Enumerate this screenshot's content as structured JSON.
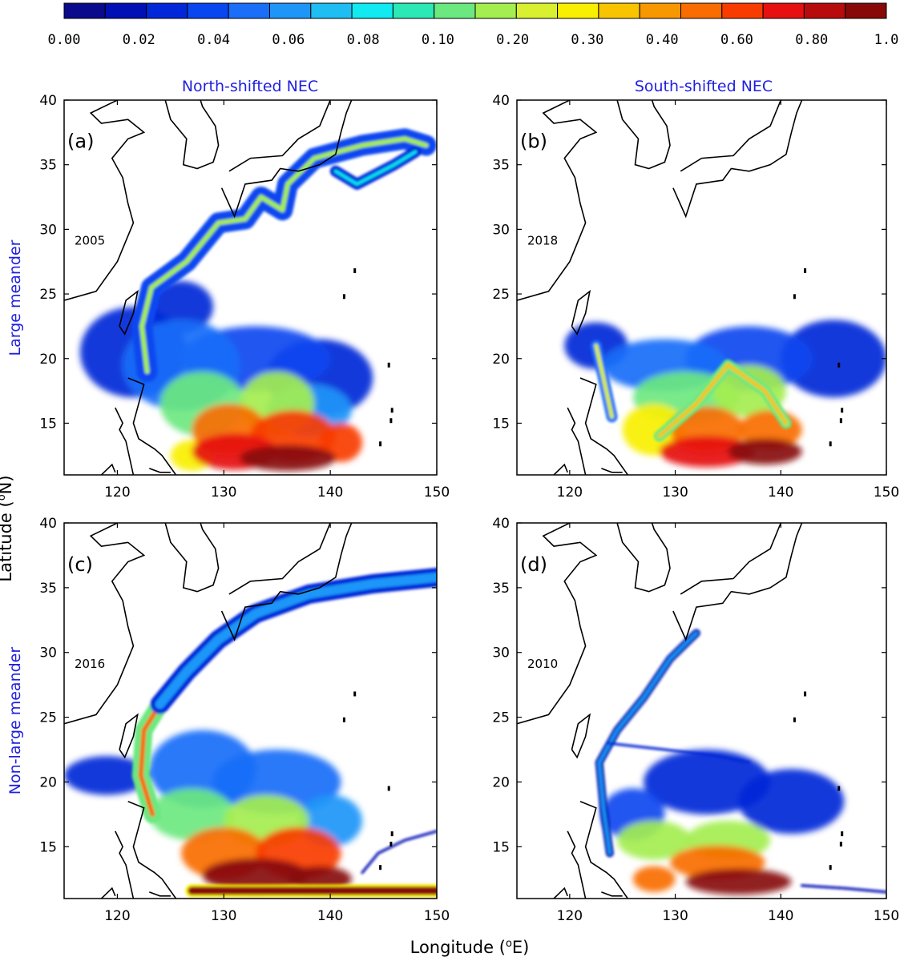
{
  "colorbar": {
    "ticks": [
      "0.00",
      "0.02",
      "0.04",
      "0.06",
      "0.08",
      "0.10",
      "0.20",
      "0.30",
      "0.40",
      "0.60",
      "0.80",
      "1.0"
    ],
    "colors": [
      "#0a0a8c",
      "#0010b4",
      "#0028d8",
      "#0846f0",
      "#1a6ef8",
      "#1e96f8",
      "#1ebef2",
      "#10eaf0",
      "#2ce8b4",
      "#6ce880",
      "#a4ee50",
      "#d8f030",
      "#f8f000",
      "#f8c400",
      "#f89800",
      "#f86c00",
      "#f83c00",
      "#e61010",
      "#b80c0c",
      "#880808"
    ]
  },
  "xlabel": "Longitude (",
  "xlabel_sup": "o",
  "xlabel_unit": "E)",
  "ylabel": "Latitude (",
  "ylabel_sup": "o",
  "ylabel_unit": "N)",
  "column_titles": [
    "North-shifted NEC",
    "South-shifted NEC"
  ],
  "row_titles": [
    "Large meander",
    "Non-large meander"
  ],
  "label_color": "#1f1fe0",
  "chart_data": [
    {
      "type": "heatmap",
      "panel": "(a)",
      "year": "2005",
      "xlim": [
        115,
        150
      ],
      "ylim": [
        11,
        40
      ],
      "xticks": [
        120,
        130,
        140,
        150
      ],
      "yticks": [
        15,
        20,
        25,
        30,
        35,
        40
      ],
      "field": [
        {
          "lon": 121.5,
          "lat": 20.5,
          "level": 0.03,
          "spread": [
            5,
            3.5
          ]
        },
        {
          "lon": 126,
          "lat": 19.5,
          "level": 0.05,
          "spread": [
            5.5,
            3.5
          ]
        },
        {
          "lon": 133,
          "lat": 20,
          "level": 0.04,
          "spread": [
            7,
            2.5
          ]
        },
        {
          "lon": 139,
          "lat": 18.5,
          "level": 0.03,
          "spread": [
            5,
            3
          ]
        },
        {
          "lon": 126,
          "lat": 24,
          "level": 0.03,
          "spread": [
            3,
            2
          ]
        },
        {
          "lon": 138,
          "lat": 16,
          "level": 0.06,
          "spread": [
            4,
            2
          ]
        },
        {
          "lon": 128,
          "lat": 16.5,
          "level": 0.12,
          "spread": [
            4,
            2.5
          ]
        },
        {
          "lon": 135,
          "lat": 16.5,
          "level": 0.18,
          "spread": [
            3.5,
            2.5
          ]
        },
        {
          "lon": 130.5,
          "lat": 14.5,
          "level": 0.45,
          "spread": [
            3.5,
            2
          ]
        },
        {
          "lon": 136.5,
          "lat": 14,
          "level": 0.6,
          "spread": [
            4,
            2
          ]
        },
        {
          "lon": 131,
          "lat": 12.8,
          "level": 0.7,
          "spread": [
            4,
            1.4
          ]
        },
        {
          "lon": 136,
          "lat": 12.3,
          "level": 0.95,
          "spread": [
            4.5,
            1
          ]
        },
        {
          "lon": 141,
          "lat": 13.5,
          "level": 0.6,
          "spread": [
            2,
            1.5
          ]
        },
        {
          "lon": 127,
          "lat": 12.5,
          "level": 0.3,
          "spread": [
            2,
            1.2
          ]
        }
      ],
      "paths": [
        {
          "name": "Kuroshio",
          "level": 0.18,
          "width": 6,
          "halo_level": 0.04,
          "halo_width": 26,
          "points": [
            [
              122.8,
              19
            ],
            [
              122.3,
              22.5
            ],
            [
              123.2,
              25.5
            ],
            [
              126.5,
              27.5
            ],
            [
              129.5,
              30.5
            ],
            [
              132,
              30.8
            ],
            [
              133.5,
              32.5
            ],
            [
              135.5,
              31.5
            ],
            [
              136,
              33.5
            ],
            [
              138.5,
              35.5
            ],
            [
              143,
              36.5
            ],
            [
              147,
              37
            ],
            [
              149,
              36.5
            ]
          ]
        },
        {
          "name": "eddy",
          "level": 0.08,
          "width": 4,
          "halo_level": 0.03,
          "halo_width": 14,
          "points": [
            [
              140.5,
              34.5
            ],
            [
              142.5,
              33.5
            ],
            [
              146,
              35
            ],
            [
              148,
              36
            ]
          ]
        }
      ]
    },
    {
      "type": "heatmap",
      "panel": "(b)",
      "year": "2018",
      "xlim": [
        115,
        150
      ],
      "ylim": [
        11,
        40
      ],
      "xticks": [
        120,
        130,
        140,
        150
      ],
      "yticks": [
        15,
        20,
        25,
        30,
        35,
        40
      ],
      "field": [
        {
          "lon": 122.5,
          "lat": 21,
          "level": 0.03,
          "spread": [
            3,
            1.8
          ]
        },
        {
          "lon": 129,
          "lat": 19.5,
          "level": 0.05,
          "spread": [
            6,
            2
          ]
        },
        {
          "lon": 137,
          "lat": 20,
          "level": 0.04,
          "spread": [
            6,
            2.5
          ]
        },
        {
          "lon": 145,
          "lat": 20,
          "level": 0.03,
          "spread": [
            5,
            3
          ]
        },
        {
          "lon": 131,
          "lat": 17,
          "level": 0.1,
          "spread": [
            5,
            2
          ]
        },
        {
          "lon": 137,
          "lat": 17.5,
          "level": 0.2,
          "spread": [
            3.5,
            2
          ]
        },
        {
          "lon": 128,
          "lat": 14.5,
          "level": 0.3,
          "spread": [
            3,
            2
          ]
        },
        {
          "lon": 133,
          "lat": 14.5,
          "level": 0.45,
          "spread": [
            3.5,
            1.8
          ]
        },
        {
          "lon": 139,
          "lat": 14.5,
          "level": 0.5,
          "spread": [
            3,
            1.5
          ]
        },
        {
          "lon": 133,
          "lat": 12.8,
          "level": 0.75,
          "spread": [
            4.5,
            1.2
          ]
        },
        {
          "lon": 138.5,
          "lat": 12.8,
          "level": 0.9,
          "spread": [
            3.5,
            1
          ]
        }
      ],
      "paths": [
        {
          "name": "Kuroshio",
          "level": 0.22,
          "width": 5,
          "halo_level": 0.05,
          "halo_width": 14,
          "points": [
            [
              124,
              15.5
            ],
            [
              123.2,
              18.5
            ],
            [
              122.5,
              21
            ]
          ]
        },
        {
          "name": "front",
          "level": 0.35,
          "width": 5,
          "halo_level": 0.1,
          "halo_width": 14,
          "points": [
            [
              128.5,
              14
            ],
            [
              132,
              16.5
            ],
            [
              135,
              19.5
            ],
            [
              138.5,
              17.5
            ],
            [
              140.5,
              15
            ]
          ]
        }
      ]
    },
    {
      "type": "heatmap",
      "panel": "(c)",
      "year": "2016",
      "xlim": [
        115,
        150
      ],
      "ylim": [
        11,
        40
      ],
      "xticks": [
        120,
        130,
        140,
        150
      ],
      "yticks": [
        15,
        20,
        25,
        30,
        35,
        40
      ],
      "field": [
        {
          "lon": 119,
          "lat": 20.5,
          "level": 0.03,
          "spread": [
            4,
            1.5
          ]
        },
        {
          "lon": 128,
          "lat": 21,
          "level": 0.05,
          "spread": [
            5,
            3
          ]
        },
        {
          "lon": 135,
          "lat": 20,
          "level": 0.05,
          "spread": [
            6,
            2.5
          ]
        },
        {
          "lon": 127,
          "lat": 17.5,
          "level": 0.12,
          "spread": [
            4,
            2
          ]
        },
        {
          "lon": 134,
          "lat": 17,
          "level": 0.15,
          "spread": [
            4,
            2
          ]
        },
        {
          "lon": 140,
          "lat": 17,
          "level": 0.06,
          "spread": [
            3,
            2
          ]
        },
        {
          "lon": 130,
          "lat": 14.5,
          "level": 0.55,
          "spread": [
            4,
            2
          ]
        },
        {
          "lon": 137,
          "lat": 14.5,
          "level": 0.6,
          "spread": [
            4,
            2
          ]
        },
        {
          "lon": 133,
          "lat": 12.8,
          "level": 0.9,
          "spread": [
            5,
            1.3
          ]
        },
        {
          "lon": 139,
          "lat": 12.5,
          "level": 0.95,
          "spread": [
            3,
            1
          ]
        }
      ],
      "paths": [
        {
          "name": "Kuroshio",
          "level": 0.55,
          "width": 6,
          "halo_level": 0.12,
          "halo_width": 22,
          "points": [
            [
              123.3,
              17.5
            ],
            [
              122.2,
              20.5
            ],
            [
              122.5,
              24
            ],
            [
              124,
              26
            ]
          ]
        },
        {
          "name": "northward",
          "level": 0.06,
          "width": 12,
          "halo_level": 0.03,
          "halo_width": 24,
          "points": [
            [
              124,
              26
            ],
            [
              126.5,
              28.5
            ],
            [
              129.5,
              31
            ],
            [
              133,
              33
            ],
            [
              138,
              34.5
            ],
            [
              144,
              35.3
            ],
            [
              150,
              35.8
            ]
          ]
        },
        {
          "name": "southern band",
          "level": 0.9,
          "width": 10,
          "halo_level": 0.3,
          "halo_width": 16,
          "points": [
            [
              127,
              11.6
            ],
            [
              138,
              11.6
            ],
            [
              150,
              11.6
            ]
          ]
        },
        {
          "name": "eastern filament",
          "level": 0.02,
          "width": 3,
          "halo_level": 0.02,
          "halo_width": 3,
          "points": [
            [
              143,
              13
            ],
            [
              144.5,
              14.5
            ],
            [
              147,
              15.5
            ],
            [
              150,
              16.2
            ]
          ]
        }
      ]
    },
    {
      "type": "heatmap",
      "panel": "(d)",
      "year": "2010",
      "xlim": [
        115,
        150
      ],
      "ylim": [
        11,
        40
      ],
      "xticks": [
        120,
        130,
        140,
        150
      ],
      "yticks": [
        15,
        20,
        25,
        30,
        35,
        40
      ],
      "field": [
        {
          "lon": 126,
          "lat": 17.5,
          "level": 0.04,
          "spread": [
            3,
            2
          ]
        },
        {
          "lon": 133,
          "lat": 20,
          "level": 0.03,
          "spread": [
            6,
            2.5
          ]
        },
        {
          "lon": 141,
          "lat": 18.5,
          "level": 0.03,
          "spread": [
            5,
            2.5
          ]
        },
        {
          "lon": 128,
          "lat": 15.5,
          "level": 0.15,
          "spread": [
            3.5,
            1.5
          ]
        },
        {
          "lon": 135,
          "lat": 15.5,
          "level": 0.2,
          "spread": [
            4,
            1.5
          ]
        },
        {
          "lon": 134,
          "lat": 13.8,
          "level": 0.55,
          "spread": [
            4.5,
            1.3
          ]
        },
        {
          "lon": 136,
          "lat": 12.3,
          "level": 0.95,
          "spread": [
            5,
            1
          ]
        },
        {
          "lon": 128,
          "lat": 12.5,
          "level": 0.5,
          "spread": [
            2,
            1
          ]
        }
      ],
      "paths": [
        {
          "name": "Kuroshio",
          "level": 0.06,
          "width": 4,
          "halo_level": 0.02,
          "halo_width": 10,
          "points": [
            [
              123.8,
              14.5
            ],
            [
              123.2,
              18
            ],
            [
              122.8,
              21.5
            ],
            [
              124.5,
              24
            ],
            [
              127,
              26.5
            ],
            [
              129.5,
              29.5
            ],
            [
              132,
              31.5
            ]
          ]
        },
        {
          "name": "branch",
          "level": 0.03,
          "width": 3,
          "halo_level": 0.02,
          "halo_width": 3,
          "points": [
            [
              123.5,
              23
            ],
            [
              129,
              22.5
            ],
            [
              134,
              22
            ],
            [
              137,
              21.5
            ]
          ]
        },
        {
          "name": "eastern tail",
          "level": 0.02,
          "width": 3,
          "halo_level": 0.02,
          "halo_width": 3,
          "points": [
            [
              142,
              12
            ],
            [
              146,
              11.8
            ],
            [
              150,
              11.5
            ]
          ]
        }
      ]
    }
  ]
}
